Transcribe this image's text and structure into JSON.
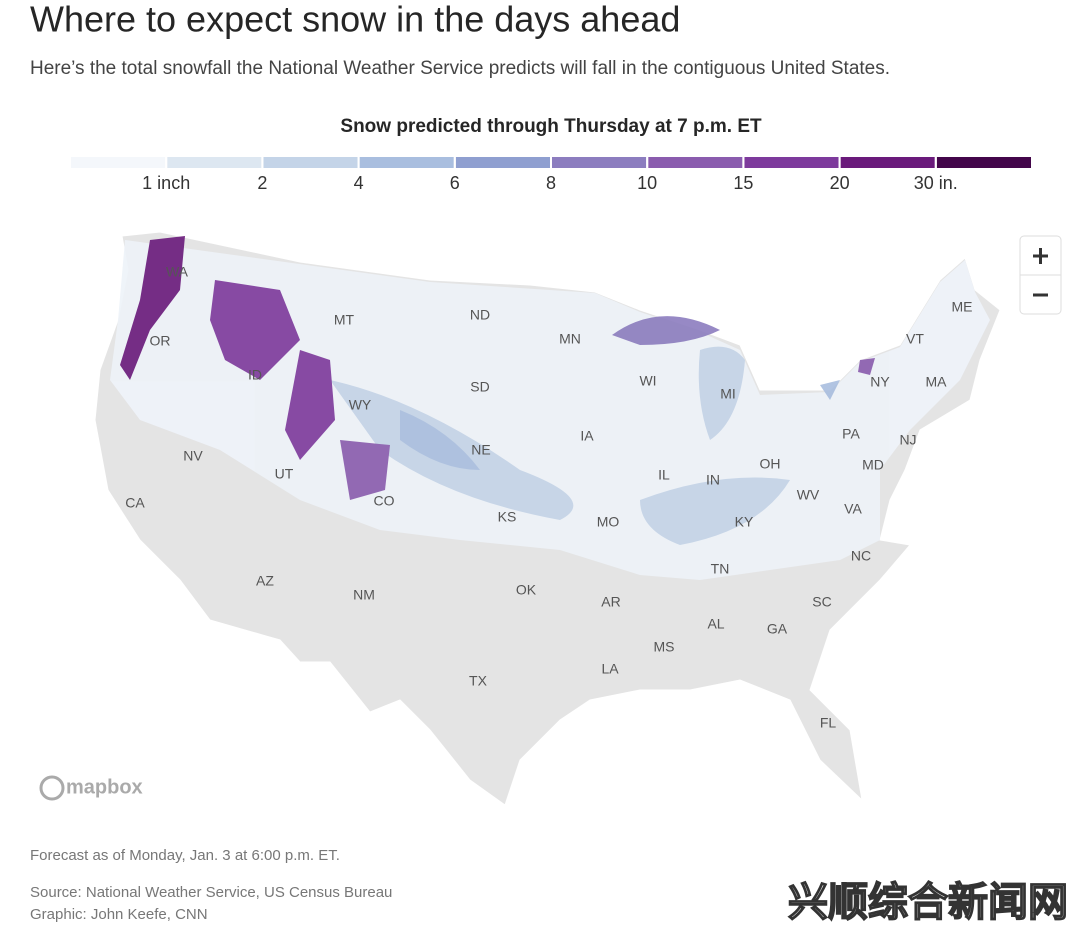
{
  "header": {
    "title": "Where to expect snow in the days ahead",
    "subtitle": "Here’s the total snowfall the National Weather Service predicts will fall in the contiguous United States."
  },
  "legend": {
    "title": "Snow predicted through Thursday at 7 p.m. ET",
    "colors": [
      "#f4f7fb",
      "#dde7f1",
      "#c4d4e8",
      "#a9bedf",
      "#8f9fd0",
      "#8c7dbf",
      "#8a5cae",
      "#7d3a9c",
      "#6a1a7b",
      "#43064a"
    ],
    "ticks": [
      {
        "value": 1,
        "label": "1 inch"
      },
      2,
      4,
      6,
      8,
      10,
      15,
      20,
      {
        "value": 30,
        "label": "30 in."
      }
    ]
  },
  "map": {
    "states": [
      "WA",
      "OR",
      "ID",
      "MT",
      "WY",
      "NV",
      "UT",
      "CA",
      "AZ",
      "CO",
      "NM",
      "ND",
      "SD",
      "NE",
      "KS",
      "OK",
      "TX",
      "MN",
      "IA",
      "MO",
      "AR",
      "LA",
      "WI",
      "IL",
      "MS",
      "MI",
      "IN",
      "KY",
      "TN",
      "AL",
      "GA",
      "FL",
      "OH",
      "WV",
      "VA",
      "NC",
      "SC",
      "PA",
      "NY",
      "MD",
      "NJ",
      "VT",
      "ME",
      "MA"
    ],
    "attribution": "mapbox"
  },
  "footer": {
    "note": "Forecast as of Monday, Jan. 3 at 6:00 p.m. ET.",
    "source": "Source: National Weather Service, US Census Bureau",
    "credit": "Graphic: John Keefe, CNN"
  },
  "watermark": "兴顺综合新闻网"
}
